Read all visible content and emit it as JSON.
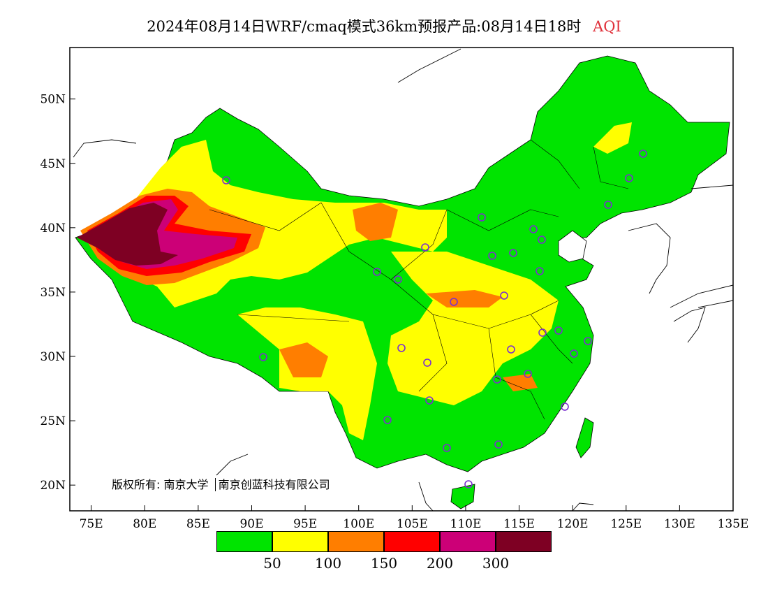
{
  "title": {
    "main": "2024年08月14日WRF/cmaq模式36km预报产品:08月14日18时",
    "product": "AQI"
  },
  "axes": {
    "lon_ticks": [
      "75E",
      "80E",
      "85E",
      "90E",
      "95E",
      "100E",
      "105E",
      "110E",
      "115E",
      "120E",
      "125E",
      "130E",
      "135E"
    ],
    "lat_ticks": [
      "20N",
      "25N",
      "30N",
      "35N",
      "40N",
      "45N",
      "50N"
    ],
    "lon_range": [
      73,
      135
    ],
    "lat_range": [
      18,
      54
    ]
  },
  "copyright": {
    "owner1": "版权所有: 南京大学",
    "owner2": "南京创蓝科技有限公司"
  },
  "legend": {
    "colors": [
      "#00e400",
      "#ffff00",
      "#ff7e00",
      "#ff0000",
      "#cc0077",
      "#7e0023"
    ],
    "labels": [
      "50",
      "100",
      "150",
      "200",
      "300"
    ]
  },
  "map_layers": {
    "base_level": "0-50",
    "regions": [
      {
        "name": "china-land",
        "level": "0-50",
        "color": "#00e400"
      },
      {
        "name": "tarim-basin",
        "level": ">300",
        "color": "#7e0023"
      },
      {
        "name": "qinghai-tibet-yellow",
        "level": "51-100",
        "color": "#ffff00"
      },
      {
        "name": "north-china-yellow",
        "level": "51-100",
        "color": "#ffff00"
      },
      {
        "name": "central-china-yellow",
        "level": "51-100",
        "color": "#ffff00"
      }
    ],
    "station_marker_color": "#7b2fd0"
  }
}
